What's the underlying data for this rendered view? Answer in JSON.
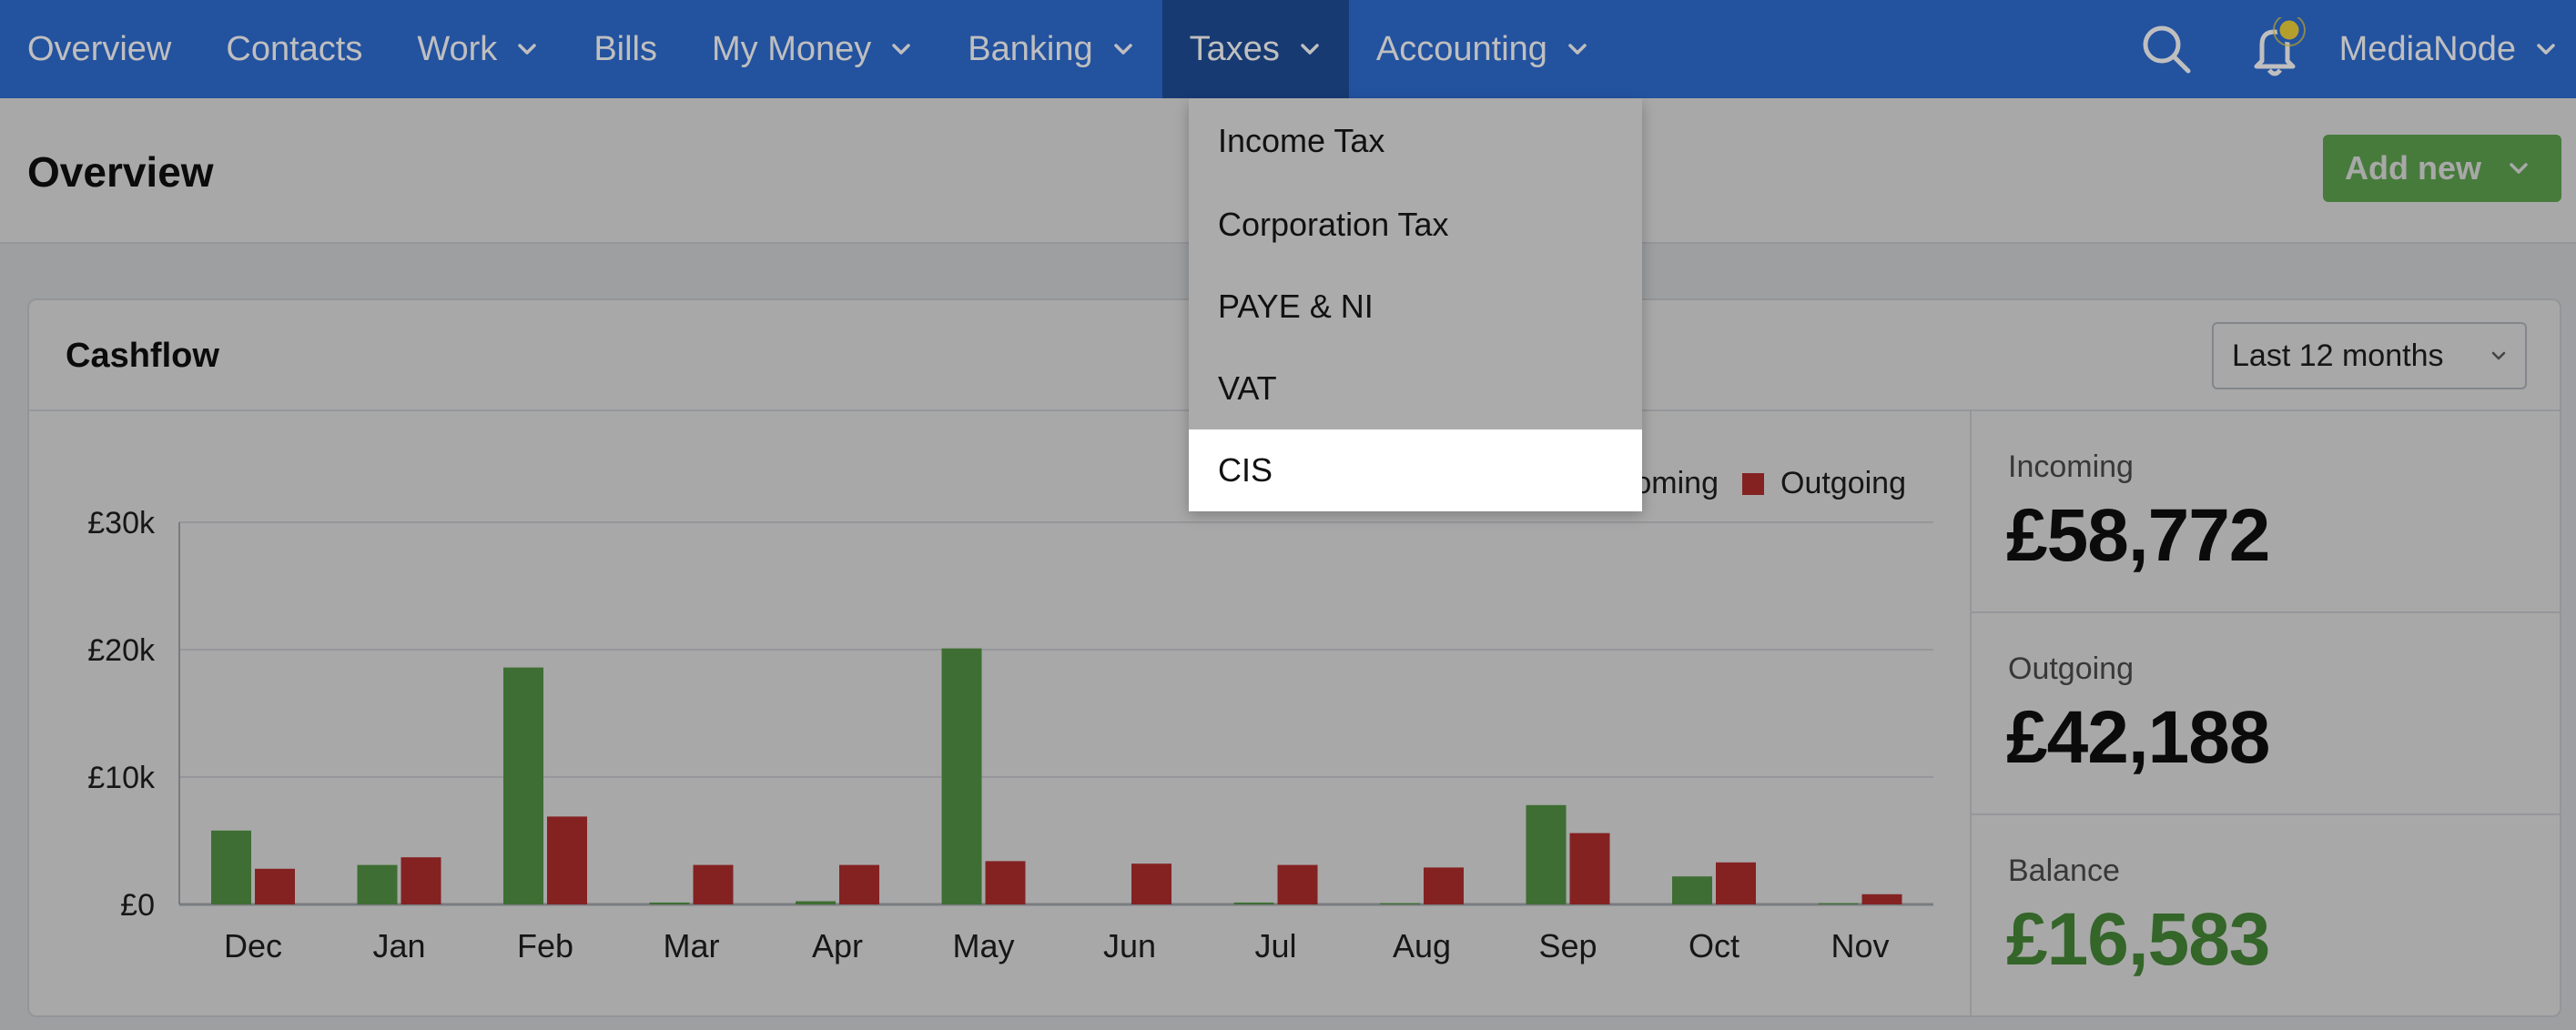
{
  "nav": {
    "items": [
      {
        "label": "Overview",
        "has_menu": false,
        "active": false,
        "name": "nav-overview"
      },
      {
        "label": "Contacts",
        "has_menu": false,
        "active": false,
        "name": "nav-contacts"
      },
      {
        "label": "Work",
        "has_menu": true,
        "active": false,
        "name": "nav-work"
      },
      {
        "label": "Bills",
        "has_menu": false,
        "active": false,
        "name": "nav-bills"
      },
      {
        "label": "My Money",
        "has_menu": true,
        "active": false,
        "name": "nav-my-money"
      },
      {
        "label": "Banking",
        "has_menu": true,
        "active": false,
        "name": "nav-banking"
      },
      {
        "label": "Taxes",
        "has_menu": true,
        "active": true,
        "name": "nav-taxes"
      },
      {
        "label": "Accounting",
        "has_menu": true,
        "active": false,
        "name": "nav-accounting"
      }
    ],
    "user": "MediaNode",
    "icons": {
      "search": "search-icon",
      "notifications": "bell-icon"
    }
  },
  "header": {
    "title": "Overview",
    "add_new_label": "Add new"
  },
  "taxes_menu": {
    "items": [
      "Income Tax",
      "Corporation Tax",
      "PAYE & NI",
      "VAT",
      "CIS"
    ],
    "highlighted_index": 4
  },
  "cashflow": {
    "title": "Cashflow",
    "range": "Last 12 months",
    "stats": {
      "incoming_label": "Incoming",
      "incoming_value": "£58,772",
      "outgoing_label": "Outgoing",
      "outgoing_value": "£42,188",
      "balance_label": "Balance",
      "balance_value": "£16,583"
    }
  },
  "colors": {
    "nav": "#2f6ed4",
    "nav_active": "#1f4e9a",
    "incoming": "#5fa84e",
    "outgoing": "#c93535",
    "balance": "#4f9a3f",
    "add_new": "#6dbb5b"
  },
  "chart_data": {
    "type": "bar",
    "categories": [
      "Dec",
      "Jan",
      "Feb",
      "Mar",
      "Apr",
      "May",
      "Jun",
      "Jul",
      "Aug",
      "Sep",
      "Oct",
      "Nov"
    ],
    "series": [
      {
        "name": "Incoming",
        "values": [
          5800,
          3100,
          18600,
          150,
          250,
          20100,
          0,
          150,
          100,
          7800,
          2200,
          100
        ]
      },
      {
        "name": "Outgoing",
        "values": [
          2800,
          3700,
          6900,
          3100,
          3100,
          3400,
          3200,
          3100,
          2900,
          5600,
          3300,
          800
        ]
      }
    ],
    "y_ticks": [
      "£0",
      "£10k",
      "£20k",
      "£30k"
    ],
    "y_tick_values": [
      0,
      10000,
      20000,
      30000
    ],
    "ylim": [
      0,
      30000
    ],
    "legend": [
      "Incoming",
      "Outgoing"
    ],
    "legend_position": "top-right",
    "grid": true
  }
}
